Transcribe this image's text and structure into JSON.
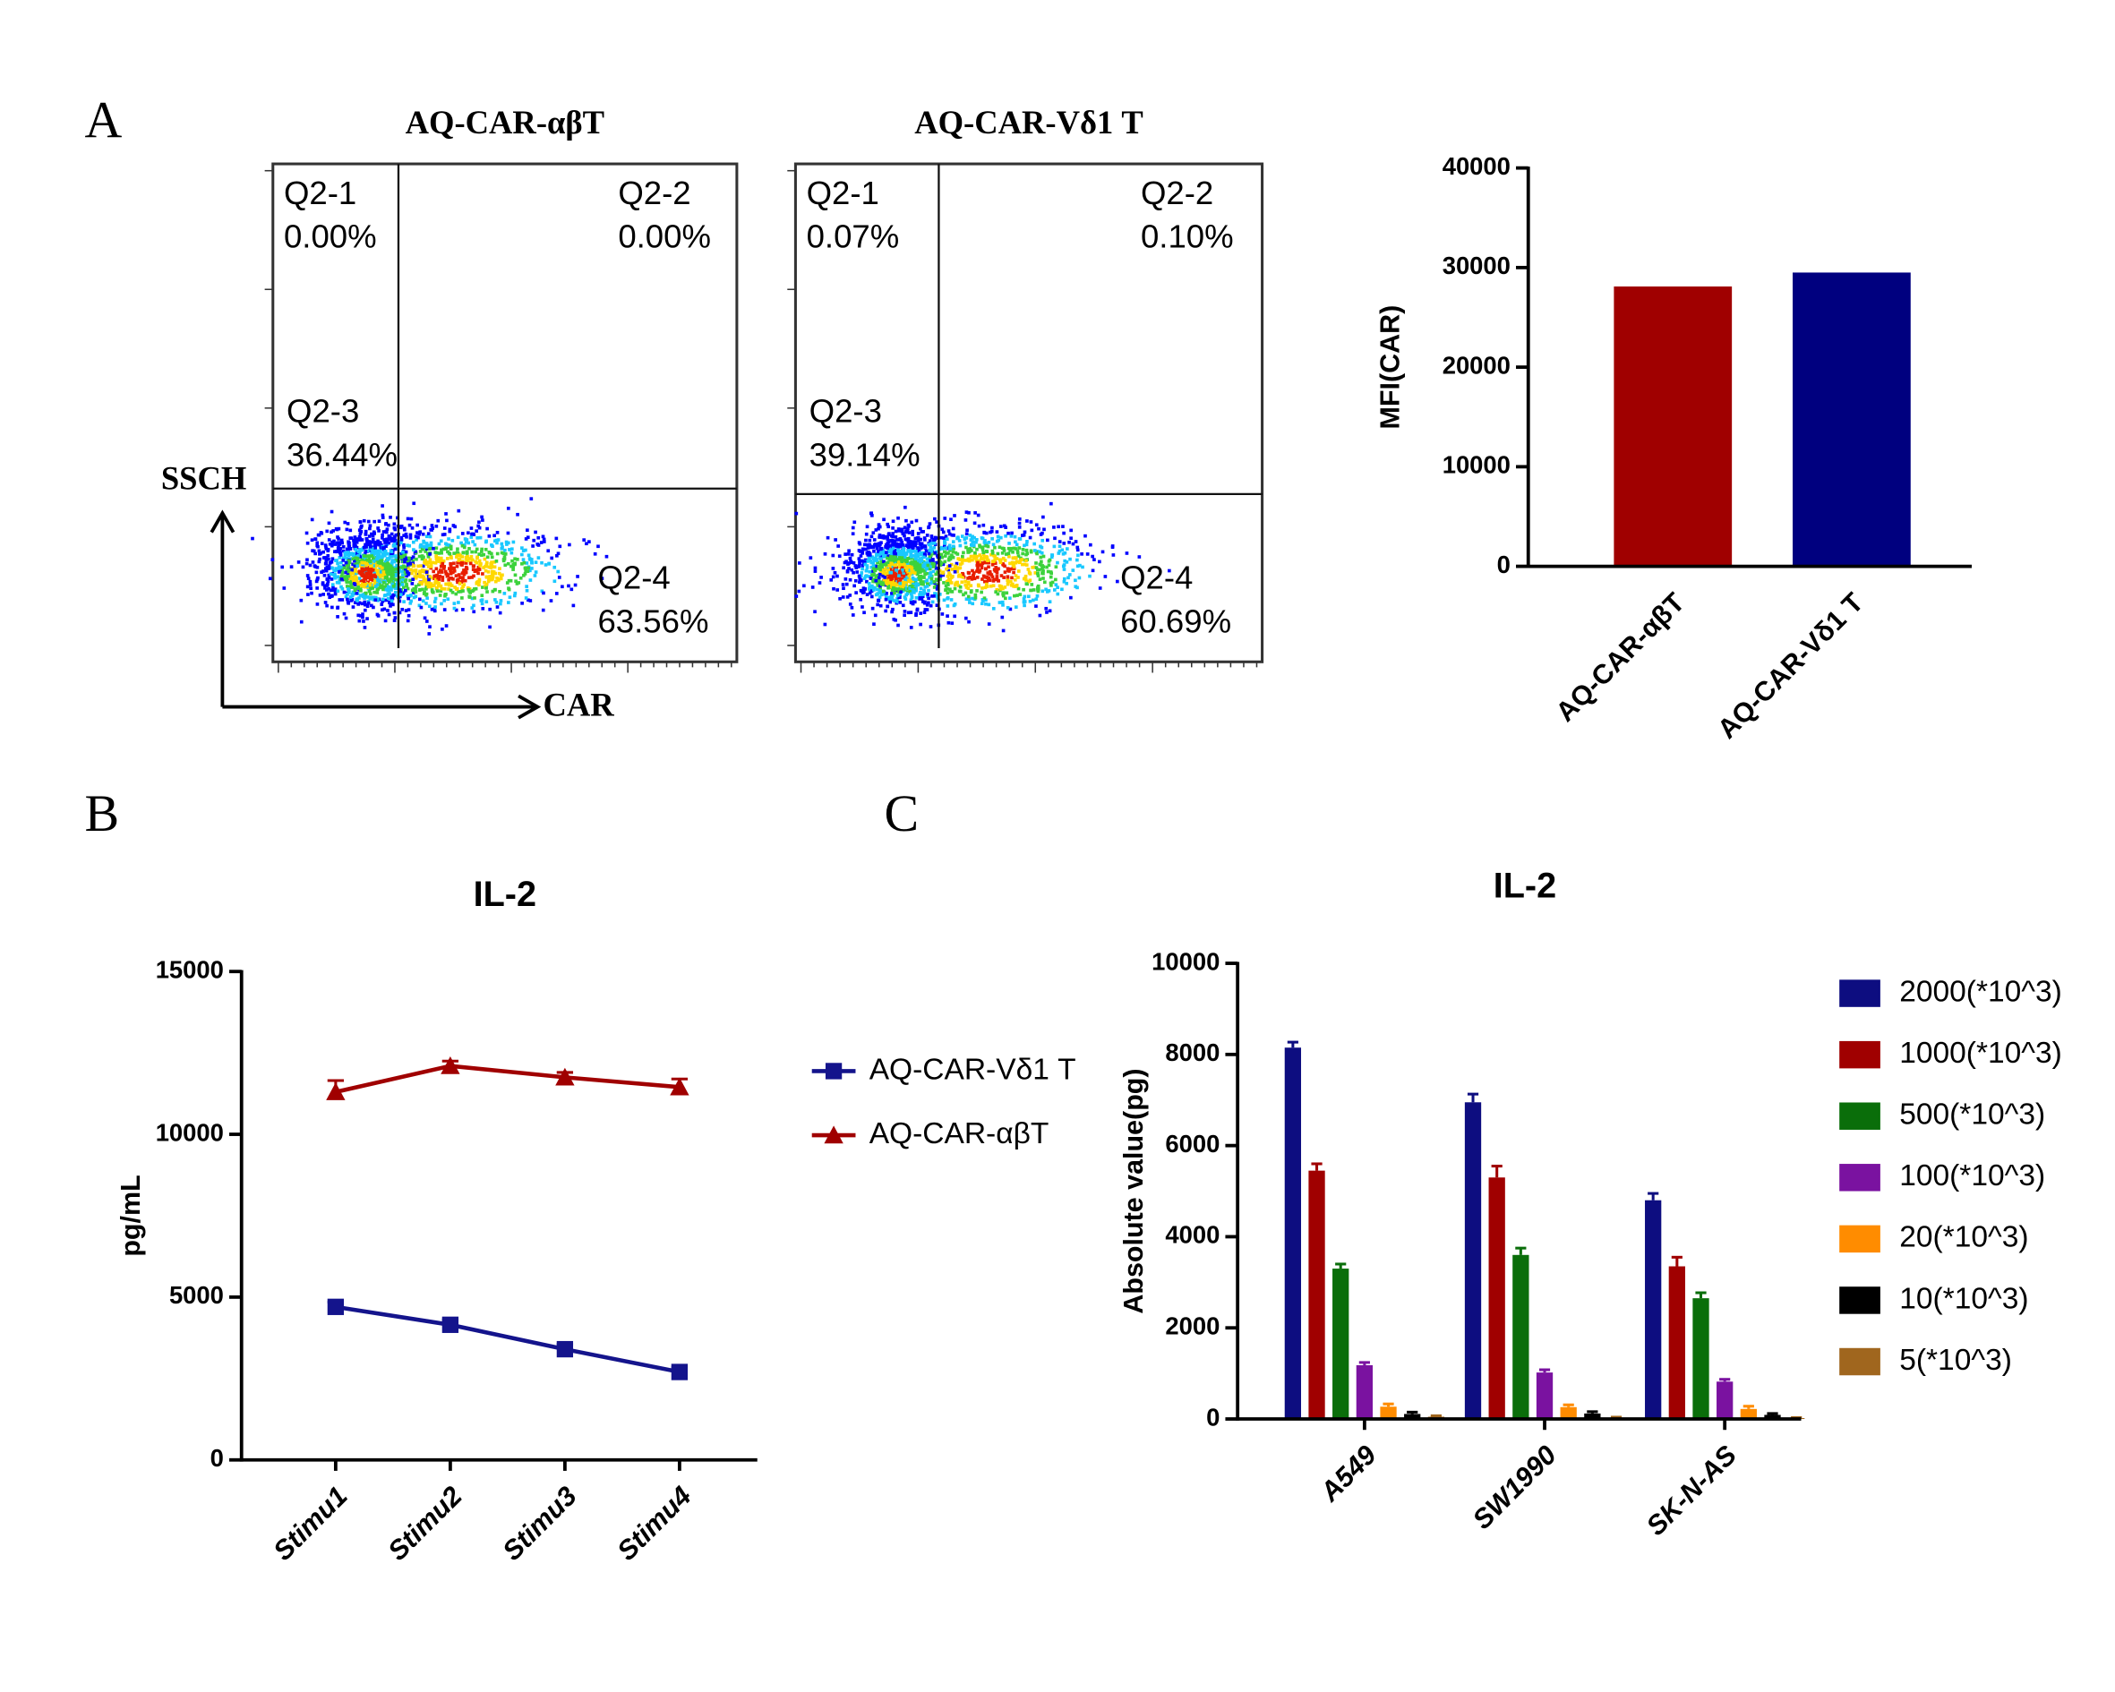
{
  "panel_labels": [
    "A",
    "B",
    "C"
  ],
  "flow_axes": {
    "y": "SSCH",
    "x": "CAR"
  },
  "flow_plots": [
    {
      "title": "AQ-CAR-αβT",
      "quadrants": [
        {
          "name": "Q2-1",
          "percent": "0.00%"
        },
        {
          "name": "Q2-2",
          "percent": "0.00%"
        },
        {
          "name": "Q2-3",
          "percent": "36.44%"
        },
        {
          "name": "Q2-4",
          "percent": "63.56%"
        }
      ]
    },
    {
      "title": "AQ-CAR-Vδ1 T",
      "quadrants": [
        {
          "name": "Q2-1",
          "percent": "0.07%"
        },
        {
          "name": "Q2-2",
          "percent": "0.10%"
        },
        {
          "name": "Q2-3",
          "percent": "39.14%"
        },
        {
          "name": "Q2-4",
          "percent": "60.69%"
        }
      ]
    }
  ],
  "chart_data": [
    {
      "type": "bar",
      "y_label": "MFI(CAR)",
      "categories": [
        "AQ-CAR-αβT",
        "AQ-CAR-Vδ1 T"
      ],
      "values": [
        28100,
        29500
      ],
      "colors": [
        "#a00000",
        "#00007f"
      ],
      "ylim": [
        0,
        40000
      ],
      "yticks": [
        0,
        10000,
        20000,
        30000,
        40000
      ]
    },
    {
      "type": "line",
      "title": "IL-2",
      "y_label": "pg/mL",
      "categories": [
        "Stimu1",
        "Stimu2",
        "Stimu3",
        "Stimu4"
      ],
      "series": [
        {
          "name": "AQ-CAR-Vδ1 T",
          "color": "#14148c",
          "marker": "square",
          "values": [
            4700,
            4150,
            3400,
            2700
          ],
          "errors": [
            150,
            150,
            150,
            150
          ]
        },
        {
          "name": "AQ-CAR-αβT",
          "color": "#a00000",
          "marker": "triangle",
          "values": [
            11300,
            12100,
            11750,
            11450
          ],
          "errors": [
            350,
            150,
            150,
            250
          ]
        }
      ],
      "ylim": [
        0,
        15000
      ],
      "yticks": [
        0,
        5000,
        10000,
        15000
      ]
    },
    {
      "type": "grouped_bar",
      "title": "IL-2",
      "y_label": "Absolute value(pg)",
      "categories": [
        "A549",
        "SW1990",
        "SK-N-AS"
      ],
      "series": [
        {
          "name": "2000(*10^3)",
          "color": "#0d0d80",
          "values": [
            8150,
            6950,
            4800
          ],
          "errors": [
            120,
            180,
            150
          ]
        },
        {
          "name": "1000(*10^3)",
          "color": "#a00000",
          "values": [
            5450,
            5300,
            3350
          ],
          "errors": [
            150,
            250,
            200
          ]
        },
        {
          "name": "500(*10^3)",
          "color": "#0a6e0a",
          "values": [
            3300,
            3600,
            2650
          ],
          "errors": [
            100,
            150,
            120
          ]
        },
        {
          "name": "100(*10^3)",
          "color": "#7a12a0",
          "values": [
            1180,
            1020,
            820
          ],
          "errors": [
            60,
            60,
            50
          ]
        },
        {
          "name": "20(*10^3)",
          "color": "#ff8c00",
          "values": [
            270,
            260,
            220
          ],
          "errors": [
            60,
            50,
            60
          ]
        },
        {
          "name": "10(*10^3)",
          "color": "#000000",
          "values": [
            110,
            120,
            90
          ],
          "errors": [
            40,
            40,
            30
          ]
        },
        {
          "name": "5(*10^3)",
          "color": "#a0661e",
          "values": [
            50,
            30,
            20
          ],
          "errors": [
            20,
            10,
            10
          ]
        }
      ],
      "ylim": [
        0,
        10000
      ],
      "yticks": [
        0,
        2000,
        4000,
        6000,
        8000,
        10000
      ]
    }
  ]
}
